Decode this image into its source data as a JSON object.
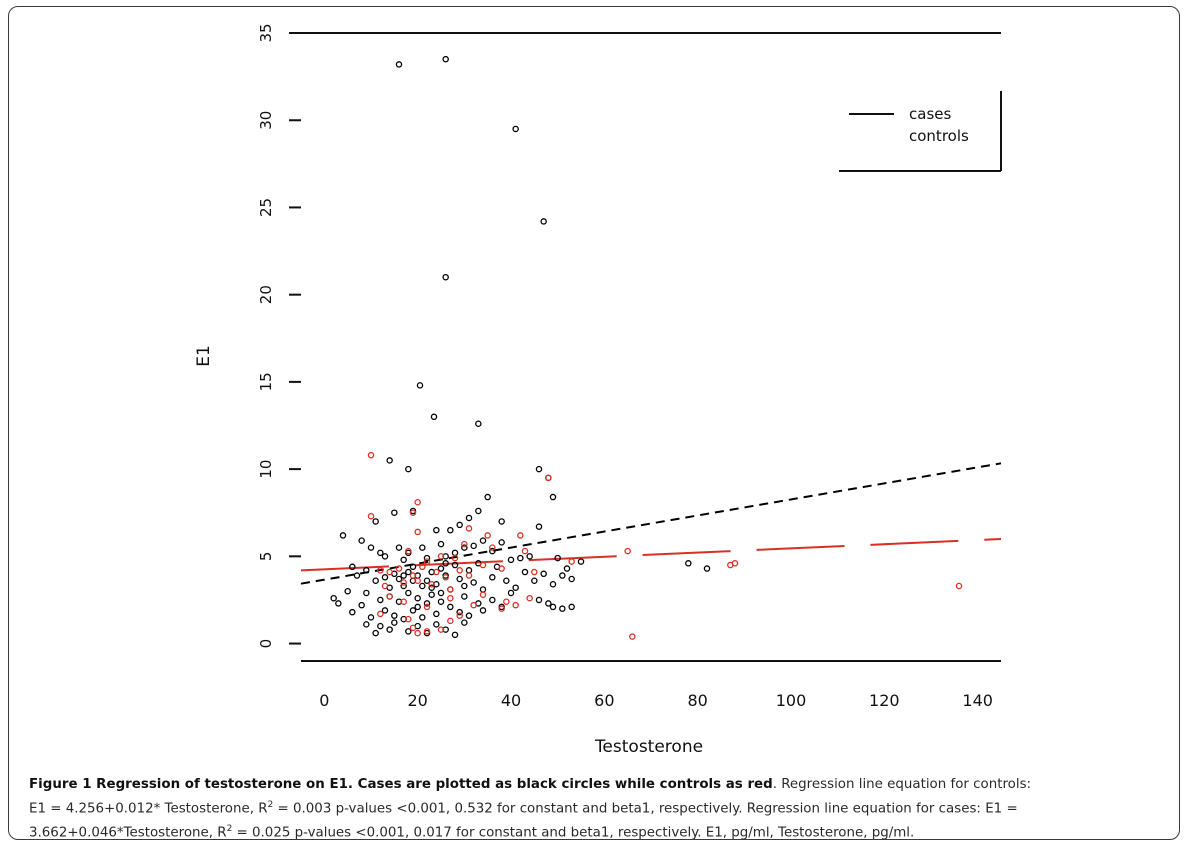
{
  "chart_data": {
    "type": "scatter",
    "title": "",
    "xlabel": "Testosterone",
    "ylabel": "E1",
    "xlim": [
      -5,
      145
    ],
    "ylim": [
      -1,
      35
    ],
    "xticks": [
      0,
      20,
      40,
      60,
      80,
      100,
      120,
      140
    ],
    "yticks": [
      0,
      5,
      10,
      15,
      20,
      25,
      30,
      35
    ],
    "legend": {
      "position": "top-right",
      "entries": [
        "cases",
        "controls"
      ]
    },
    "grid": false,
    "series": [
      {
        "name": "cases",
        "color": "#000000",
        "marker": "open-circle",
        "points": [
          [
            16,
            33.2
          ],
          [
            26,
            33.5
          ],
          [
            41,
            29.5
          ],
          [
            47,
            24.2
          ],
          [
            26,
            21
          ],
          [
            20.5,
            14.8
          ],
          [
            23.5,
            13
          ],
          [
            33,
            12.6
          ],
          [
            14,
            10.5
          ],
          [
            18,
            10
          ],
          [
            46,
            10
          ],
          [
            48,
            9.5
          ],
          [
            49,
            8.4
          ],
          [
            35,
            8.4
          ],
          [
            33,
            7.6
          ],
          [
            31,
            7.2
          ],
          [
            38,
            7
          ],
          [
            11,
            7
          ],
          [
            15,
            7.5
          ],
          [
            19,
            7.6
          ],
          [
            24,
            6.5
          ],
          [
            27,
            6.5
          ],
          [
            29,
            6.8
          ],
          [
            46,
            6.7
          ],
          [
            4,
            6.2
          ],
          [
            8,
            5.9
          ],
          [
            10,
            5.5
          ],
          [
            12,
            5.2
          ],
          [
            13,
            5
          ],
          [
            16,
            5.5
          ],
          [
            17,
            4.8
          ],
          [
            18,
            5.2
          ],
          [
            21,
            5.5
          ],
          [
            22,
            4.9
          ],
          [
            25,
            5.7
          ],
          [
            26,
            5
          ],
          [
            28,
            5.2
          ],
          [
            30,
            5.5
          ],
          [
            32,
            5.6
          ],
          [
            34,
            5.9
          ],
          [
            36,
            5.3
          ],
          [
            38,
            5.8
          ],
          [
            40,
            4.8
          ],
          [
            42,
            4.9
          ],
          [
            44,
            5
          ],
          [
            50,
            4.9
          ],
          [
            52,
            4.3
          ],
          [
            55,
            4.7
          ],
          [
            78,
            4.6
          ],
          [
            82,
            4.3
          ],
          [
            6,
            4.4
          ],
          [
            7,
            3.9
          ],
          [
            9,
            4.2
          ],
          [
            11,
            3.6
          ],
          [
            13,
            3.8
          ],
          [
            14,
            3.2
          ],
          [
            15,
            4
          ],
          [
            16,
            3.7
          ],
          [
            17,
            3.3
          ],
          [
            18,
            4.1
          ],
          [
            19,
            3.6
          ],
          [
            20,
            3.9
          ],
          [
            21,
            3.3
          ],
          [
            22,
            3.6
          ],
          [
            23,
            4.1
          ],
          [
            24,
            3.4
          ],
          [
            25,
            4.3
          ],
          [
            26,
            3.9
          ],
          [
            27,
            3.1
          ],
          [
            28,
            4.5
          ],
          [
            29,
            3.7
          ],
          [
            30,
            3.3
          ],
          [
            31,
            4.2
          ],
          [
            32,
            3.5
          ],
          [
            33,
            4.6
          ],
          [
            34,
            3.1
          ],
          [
            36,
            3.8
          ],
          [
            37,
            4.4
          ],
          [
            39,
            3.6
          ],
          [
            41,
            3.2
          ],
          [
            43,
            4.1
          ],
          [
            45,
            3.6
          ],
          [
            47,
            4
          ],
          [
            49,
            3.4
          ],
          [
            51,
            3.9
          ],
          [
            53,
            3.7
          ],
          [
            2,
            2.6
          ],
          [
            3,
            2.3
          ],
          [
            5,
            3
          ],
          [
            6,
            1.8
          ],
          [
            8,
            2.2
          ],
          [
            9,
            2.9
          ],
          [
            10,
            1.5
          ],
          [
            12,
            2.5
          ],
          [
            13,
            1.9
          ],
          [
            14,
            2.7
          ],
          [
            15,
            1.6
          ],
          [
            16,
            2.4
          ],
          [
            17,
            1.4
          ],
          [
            18,
            2.9
          ],
          [
            19,
            1.9
          ],
          [
            20,
            2.6
          ],
          [
            21,
            1.5
          ],
          [
            22,
            2.3
          ],
          [
            23,
            2.8
          ],
          [
            24,
            1.7
          ],
          [
            25,
            2.4
          ],
          [
            27,
            2.1
          ],
          [
            29,
            1.8
          ],
          [
            30,
            2.7
          ],
          [
            31,
            1.6
          ],
          [
            33,
            2.3
          ],
          [
            34,
            1.9
          ],
          [
            36,
            2.5
          ],
          [
            38,
            2.1
          ],
          [
            40,
            2.9
          ],
          [
            46,
            2.5
          ],
          [
            48,
            2.3
          ],
          [
            49,
            2.1
          ],
          [
            51,
            2
          ],
          [
            53,
            2.1
          ],
          [
            9,
            1.1
          ],
          [
            11,
            0.6
          ],
          [
            12,
            1
          ],
          [
            14,
            0.8
          ],
          [
            15,
            1.2
          ],
          [
            18,
            0.7
          ],
          [
            20,
            1
          ],
          [
            22,
            0.6
          ],
          [
            24,
            1.1
          ],
          [
            26,
            0.8
          ],
          [
            28,
            0.5
          ],
          [
            30,
            1.2
          ],
          [
            17,
            3.9
          ],
          [
            19,
            4.4
          ],
          [
            23,
            3.2
          ],
          [
            25,
            2.9
          ],
          [
            26,
            4.6
          ],
          [
            20,
            2.1
          ]
        ]
      },
      {
        "name": "controls",
        "color": "#d93025",
        "marker": "open-circle",
        "points": [
          [
            10,
            10.8
          ],
          [
            48,
            9.5
          ],
          [
            20,
            8.1
          ],
          [
            19,
            7.5
          ],
          [
            10,
            7.3
          ],
          [
            35,
            6.2
          ],
          [
            42,
            6.2
          ],
          [
            20,
            6.4
          ],
          [
            31,
            6.6
          ],
          [
            18,
            5.3
          ],
          [
            25,
            5
          ],
          [
            30,
            5.7
          ],
          [
            36,
            5.5
          ],
          [
            22,
            4.7
          ],
          [
            28,
            4.9
          ],
          [
            53,
            4.7
          ],
          [
            87,
            4.5
          ],
          [
            88,
            4.6
          ],
          [
            12,
            4.2
          ],
          [
            14,
            4.1
          ],
          [
            16,
            4.3
          ],
          [
            19,
            3.9
          ],
          [
            21,
            4.4
          ],
          [
            24,
            4.1
          ],
          [
            26,
            3.8
          ],
          [
            29,
            4.2
          ],
          [
            31,
            3.9
          ],
          [
            34,
            4.5
          ],
          [
            38,
            4.3
          ],
          [
            45,
            4.1
          ],
          [
            23,
            3.4
          ],
          [
            27,
            3.1
          ],
          [
            20,
            3.6
          ],
          [
            17,
            3.5
          ],
          [
            13,
            3.3
          ],
          [
            14,
            2.7
          ],
          [
            17,
            2.4
          ],
          [
            22,
            2.1
          ],
          [
            27,
            2.6
          ],
          [
            32,
            2.2
          ],
          [
            38,
            2
          ],
          [
            41,
            2.2
          ],
          [
            44,
            2.6
          ],
          [
            29,
            1.6
          ],
          [
            12,
            1.7
          ],
          [
            18,
            1.4
          ],
          [
            20,
            0.6
          ],
          [
            22,
            0.7
          ],
          [
            25,
            0.8
          ],
          [
            19,
            0.9
          ],
          [
            27,
            1.3
          ],
          [
            34,
            2.8
          ],
          [
            65,
            5.3
          ],
          [
            66,
            0.4
          ],
          [
            136,
            3.3
          ],
          [
            43,
            5.3
          ],
          [
            39,
            2.4
          ]
        ]
      }
    ],
    "fit_lines": [
      {
        "name": "cases",
        "style": "dashed",
        "color": "#000000",
        "intercept": 3.662,
        "slope": 0.046,
        "x_range": [
          -5,
          145
        ]
      },
      {
        "name": "controls",
        "style": "solid",
        "color": "#d93025",
        "intercept": 4.256,
        "slope": 0.012,
        "x_range": [
          -5,
          145
        ]
      }
    ]
  },
  "caption": {
    "bold": "Figure 1 Regression of testosterone on E1. Cases are plotted as black circles while controls as red",
    "line1_rest": ". Regression line equation for controls:",
    "line2_a": "E1 = 4.256+0.012* Testosterone, R",
    "sup": "2",
    "line2_b": " = 0.003 p-values <0.001, 0.532 for constant and beta1, respectively. Regression line equation for cases: E1 =",
    "line3_a": "3.662+0.046*Testosterone, R",
    "line3_b": " = 0.025 p-values <0.001, 0.017 for constant and beta1, respectively. E1, pg/ml, Testosterone, pg/ml."
  }
}
